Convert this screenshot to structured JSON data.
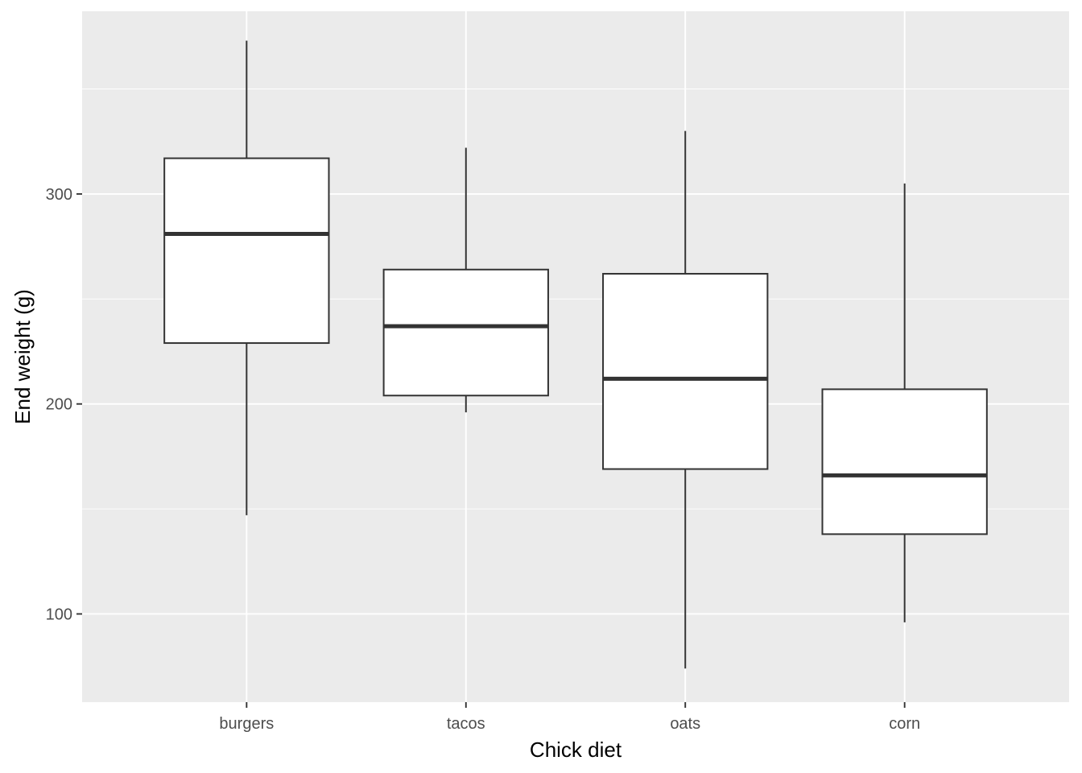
{
  "chart_data": {
    "type": "boxplot",
    "xlabel": "Chick diet",
    "ylabel": "End weight (g)",
    "categories": [
      "burgers",
      "tacos",
      "oats",
      "corn"
    ],
    "boxes": [
      {
        "category": "burgers",
        "whisker_low": 147,
        "q1": 229,
        "median": 281,
        "q3": 317,
        "whisker_high": 373
      },
      {
        "category": "tacos",
        "whisker_low": 196,
        "q1": 204,
        "median": 237,
        "q3": 264,
        "whisker_high": 322
      },
      {
        "category": "oats",
        "whisker_low": 74,
        "q1": 169,
        "median": 212,
        "q3": 262,
        "whisker_high": 330
      },
      {
        "category": "corn",
        "whisker_low": 96,
        "q1": 138,
        "median": 166,
        "q3": 207,
        "whisker_high": 305
      }
    ],
    "yticks": [
      100,
      200,
      300
    ],
    "ylim": [
      58,
      387
    ],
    "grid": true,
    "colors": {
      "panel": "#EBEBEB",
      "grid": "#FFFFFF",
      "box_fill": "#FFFFFF",
      "box_line": "#333333",
      "tick_text": "#4D4D4D"
    }
  }
}
